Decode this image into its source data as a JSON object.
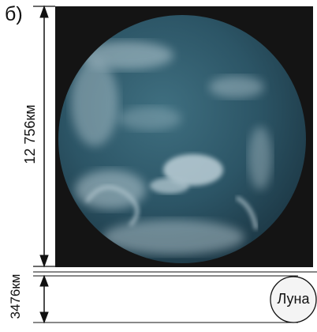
{
  "panel_label": "б)",
  "earth_diameter": "12 756км",
  "moon_diameter": "3476км",
  "moon_label": "Луна",
  "colors": {
    "background": "#ffffff",
    "photo_bg": "#141414",
    "earth_ocean": "#2c5566",
    "clouds": "#d8e6ec",
    "ink": "#111111"
  },
  "icons": [
    "earth-photo",
    "moon-circle",
    "dimension-arrow"
  ]
}
